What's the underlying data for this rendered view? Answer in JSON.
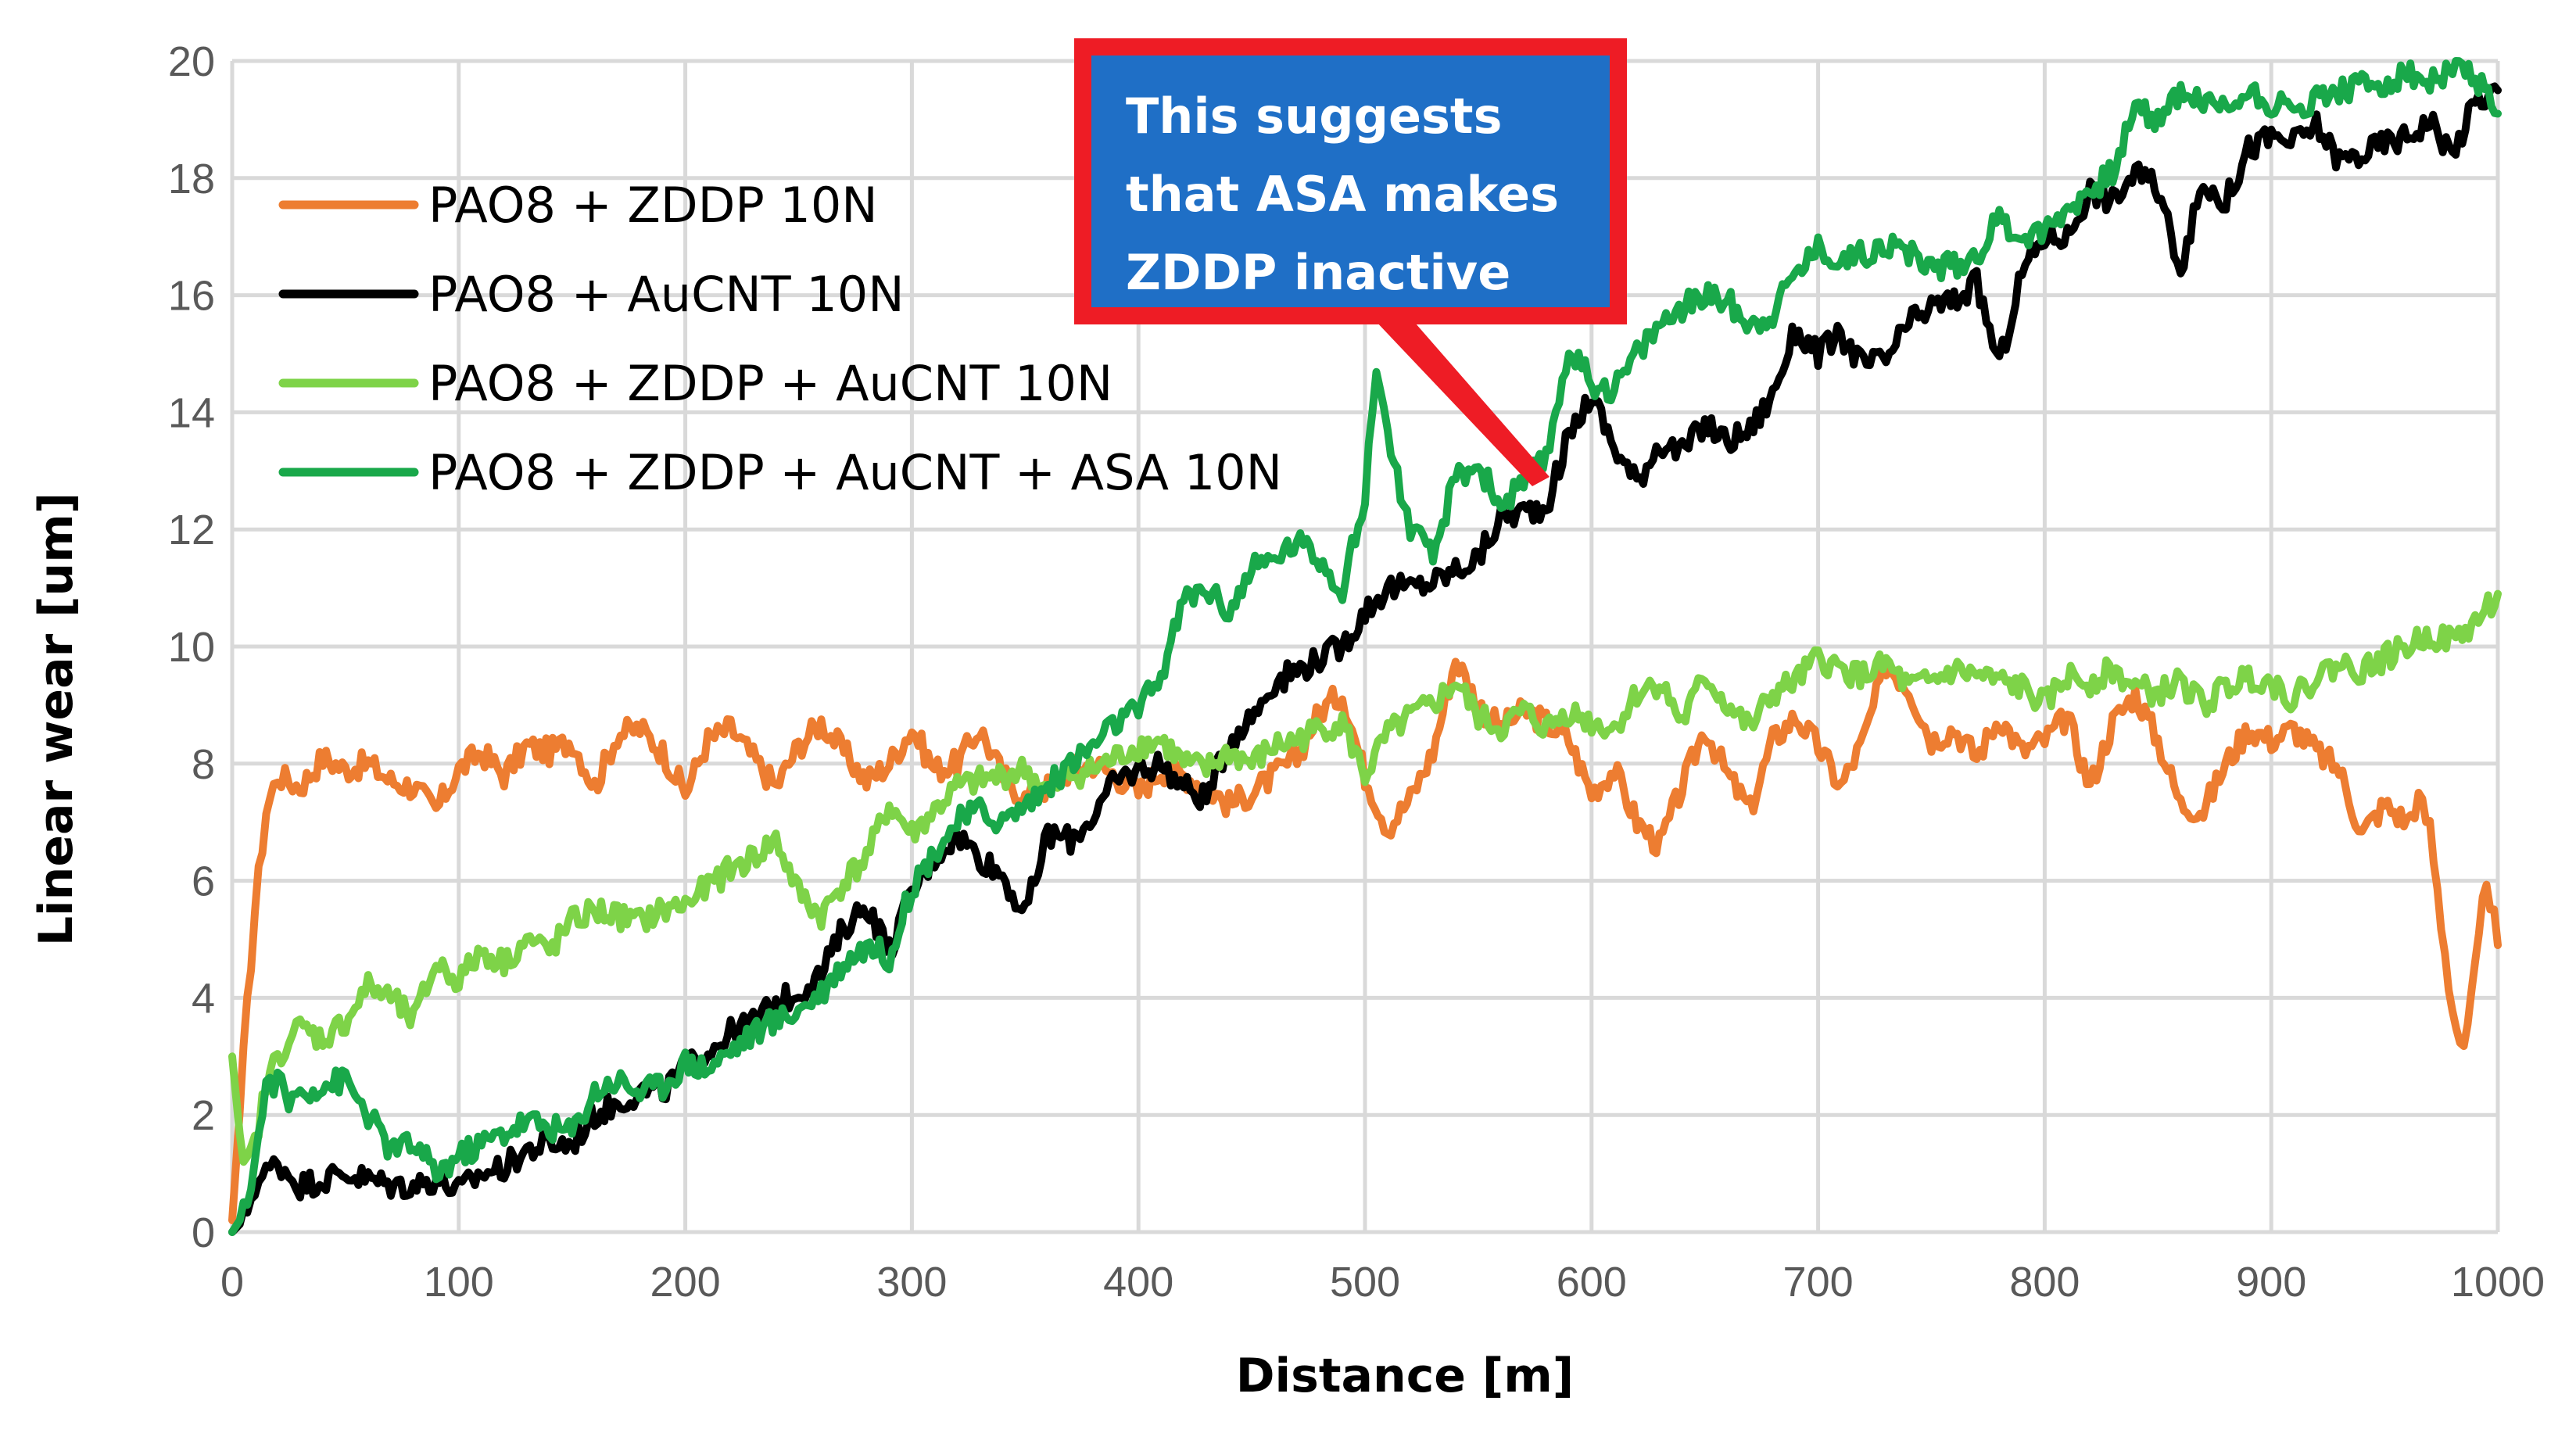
{
  "chart_data": {
    "type": "line",
    "title": "",
    "xlabel": "Distance [m]",
    "ylabel": "Linear wear [um]",
    "xlim": [
      0,
      1000
    ],
    "ylim": [
      0,
      20
    ],
    "xticks": [
      0,
      100,
      200,
      300,
      400,
      500,
      600,
      700,
      800,
      900,
      1000
    ],
    "yticks": [
      0,
      2,
      4,
      6,
      8,
      10,
      12,
      14,
      16,
      18,
      20
    ],
    "grid": true,
    "legend_position": "top-left",
    "series": [
      {
        "name": "PAO8 + ZDDP 10N",
        "color": "#ed7d31",
        "x": [
          0,
          5,
          10,
          15,
          20,
          25,
          30,
          40,
          50,
          60,
          70,
          80,
          90,
          100,
          110,
          120,
          130,
          140,
          150,
          160,
          170,
          180,
          190,
          200,
          210,
          220,
          230,
          240,
          250,
          260,
          270,
          280,
          290,
          300,
          310,
          320,
          330,
          340,
          350,
          360,
          370,
          380,
          390,
          400,
          410,
          420,
          430,
          440,
          450,
          460,
          470,
          480,
          490,
          500,
          510,
          520,
          530,
          540,
          550,
          560,
          570,
          580,
          590,
          600,
          610,
          620,
          630,
          640,
          650,
          660,
          670,
          680,
          690,
          700,
          710,
          720,
          730,
          740,
          750,
          760,
          770,
          780,
          790,
          800,
          810,
          820,
          830,
          840,
          850,
          860,
          870,
          880,
          890,
          900,
          910,
          920,
          930,
          940,
          950,
          960,
          965,
          970,
          975,
          980,
          985,
          990,
          995,
          1000
        ],
        "values": [
          0.2,
          3.0,
          5.5,
          7.2,
          7.8,
          7.7,
          7.6,
          8.1,
          7.9,
          8.0,
          7.7,
          7.6,
          7.2,
          7.9,
          8.2,
          7.8,
          8.3,
          8.2,
          8.4,
          7.6,
          8.5,
          8.6,
          8.2,
          7.5,
          8.4,
          8.6,
          8.1,
          7.6,
          8.3,
          8.7,
          8.2,
          7.7,
          8.0,
          8.6,
          7.9,
          8.0,
          8.6,
          7.8,
          7.4,
          7.6,
          7.9,
          8.0,
          7.8,
          7.5,
          7.9,
          7.8,
          7.6,
          7.3,
          7.5,
          7.8,
          8.1,
          8.9,
          9.2,
          7.8,
          6.9,
          7.4,
          8.2,
          9.8,
          9.0,
          8.6,
          8.9,
          8.7,
          8.4,
          7.5,
          7.9,
          7.0,
          6.6,
          7.6,
          8.6,
          7.8,
          7.2,
          8.4,
          8.8,
          8.3,
          7.6,
          8.4,
          9.7,
          9.3,
          8.4,
          8.6,
          8.1,
          8.8,
          8.2,
          8.4,
          8.8,
          7.6,
          8.7,
          9.2,
          8.4,
          7.3,
          7.2,
          8.0,
          8.6,
          8.4,
          8.6,
          8.2,
          7.9,
          6.8,
          7.3,
          7.0,
          7.4,
          6.9,
          5.3,
          3.8,
          3.0,
          4.4,
          6.1,
          4.9
        ]
      },
      {
        "name": "PAO8 + AuCNT 10N",
        "color": "#000000",
        "x": [
          0,
          5,
          10,
          15,
          20,
          25,
          30,
          40,
          50,
          60,
          70,
          80,
          90,
          100,
          110,
          120,
          130,
          140,
          150,
          160,
          170,
          180,
          190,
          200,
          210,
          220,
          230,
          240,
          250,
          260,
          270,
          280,
          290,
          300,
          310,
          320,
          330,
          340,
          350,
          360,
          370,
          380,
          390,
          400,
          410,
          420,
          430,
          440,
          450,
          460,
          470,
          480,
          490,
          500,
          510,
          520,
          530,
          540,
          550,
          560,
          570,
          580,
          590,
          600,
          610,
          620,
          630,
          640,
          650,
          660,
          670,
          680,
          690,
          700,
          710,
          720,
          730,
          740,
          750,
          760,
          770,
          780,
          790,
          800,
          810,
          820,
          830,
          840,
          850,
          860,
          870,
          880,
          890,
          900,
          910,
          920,
          930,
          940,
          950,
          960,
          970,
          980,
          990,
          1000
        ],
        "values": [
          0.0,
          0.2,
          0.8,
          1.0,
          1.2,
          1.0,
          0.8,
          0.9,
          1.0,
          0.9,
          0.8,
          0.8,
          0.9,
          0.7,
          1.0,
          1.1,
          1.4,
          1.5,
          1.5,
          2.0,
          2.2,
          2.4,
          2.4,
          2.8,
          3.1,
          3.4,
          3.6,
          3.9,
          4.1,
          4.4,
          5.2,
          5.6,
          4.8,
          5.8,
          6.4,
          6.8,
          6.4,
          6.1,
          5.4,
          6.8,
          6.7,
          7.1,
          7.7,
          7.9,
          8.0,
          7.6,
          7.4,
          8.4,
          8.8,
          9.4,
          9.6,
          9.8,
          10.0,
          10.6,
          11.0,
          11.0,
          11.1,
          11.3,
          11.5,
          12.2,
          12.3,
          12.4,
          13.6,
          14.3,
          13.4,
          12.8,
          13.5,
          13.3,
          13.8,
          13.5,
          13.7,
          14.3,
          15.4,
          15.0,
          15.3,
          14.8,
          14.9,
          15.5,
          15.8,
          15.9,
          16.2,
          14.8,
          16.4,
          17.0,
          17.0,
          17.8,
          17.6,
          18.1,
          17.8,
          16.5,
          17.9,
          17.6,
          18.5,
          18.7,
          18.6,
          18.9,
          18.3,
          18.4,
          18.6,
          18.7,
          19.0,
          18.4,
          19.3,
          19.5
        ]
      },
      {
        "name": "PAO8 + ZDDP + AuCNT 10N",
        "color": "#7ed348",
        "x": [
          0,
          5,
          10,
          15,
          20,
          25,
          30,
          40,
          50,
          60,
          70,
          80,
          90,
          100,
          110,
          120,
          130,
          140,
          150,
          160,
          170,
          180,
          190,
          200,
          210,
          220,
          230,
          240,
          250,
          260,
          270,
          280,
          290,
          300,
          310,
          320,
          330,
          340,
          350,
          360,
          370,
          380,
          390,
          400,
          410,
          420,
          430,
          440,
          450,
          460,
          470,
          480,
          490,
          500,
          510,
          520,
          530,
          540,
          550,
          560,
          570,
          580,
          590,
          600,
          610,
          620,
          630,
          640,
          650,
          660,
          670,
          680,
          690,
          700,
          710,
          720,
          730,
          740,
          750,
          760,
          770,
          780,
          790,
          800,
          810,
          820,
          830,
          840,
          850,
          860,
          870,
          880,
          890,
          900,
          910,
          920,
          930,
          940,
          950,
          960,
          970,
          980,
          990,
          1000
        ],
        "values": [
          3.0,
          1.0,
          1.5,
          2.5,
          3.0,
          3.3,
          3.5,
          3.3,
          3.6,
          4.2,
          4.0,
          3.6,
          4.6,
          4.3,
          4.8,
          4.6,
          5.0,
          4.8,
          5.3,
          5.5,
          5.4,
          5.3,
          5.5,
          5.6,
          5.9,
          6.2,
          6.4,
          6.7,
          5.8,
          5.4,
          6.0,
          6.4,
          7.3,
          6.8,
          7.2,
          7.6,
          7.7,
          7.8,
          7.9,
          7.5,
          7.8,
          7.9,
          8.1,
          8.3,
          8.4,
          8.0,
          7.9,
          8.2,
          8.0,
          8.3,
          8.4,
          8.6,
          8.7,
          7.8,
          8.5,
          8.8,
          9.0,
          9.4,
          8.8,
          8.6,
          8.9,
          8.6,
          8.9,
          8.7,
          8.6,
          9.2,
          9.4,
          8.7,
          9.5,
          9.0,
          8.6,
          9.2,
          9.4,
          9.8,
          9.6,
          9.5,
          9.7,
          9.3,
          9.4,
          9.6,
          9.5,
          9.4,
          9.3,
          9.0,
          9.5,
          9.4,
          9.6,
          9.3,
          9.2,
          9.4,
          9.0,
          9.3,
          9.5,
          9.4,
          9.1,
          9.5,
          9.7,
          9.6,
          9.8,
          10.0,
          10.2,
          10.1,
          10.4,
          10.9
        ]
      },
      {
        "name": "PAO8 + ZDDP + AuCNT + ASA 10N",
        "color": "#19a84a",
        "x": [
          0,
          5,
          10,
          15,
          20,
          25,
          30,
          40,
          50,
          60,
          70,
          80,
          90,
          100,
          110,
          120,
          130,
          140,
          150,
          160,
          170,
          180,
          190,
          200,
          210,
          220,
          230,
          240,
          250,
          260,
          270,
          280,
          290,
          300,
          310,
          320,
          330,
          340,
          350,
          360,
          370,
          380,
          390,
          400,
          410,
          420,
          430,
          440,
          450,
          460,
          470,
          480,
          490,
          500,
          505,
          510,
          520,
          530,
          540,
          550,
          560,
          570,
          580,
          590,
          600,
          610,
          620,
          630,
          640,
          650,
          660,
          670,
          680,
          690,
          700,
          710,
          720,
          730,
          740,
          750,
          760,
          770,
          780,
          790,
          800,
          810,
          820,
          830,
          840,
          850,
          860,
          870,
          880,
          890,
          900,
          910,
          920,
          930,
          940,
          950,
          960,
          970,
          980,
          990,
          1000
        ],
        "values": [
          0.0,
          0.3,
          1.2,
          2.5,
          2.6,
          2.2,
          2.4,
          2.5,
          2.6,
          2.0,
          1.4,
          1.5,
          1.0,
          1.3,
          1.5,
          1.7,
          1.9,
          1.8,
          1.7,
          2.4,
          2.6,
          2.4,
          2.5,
          2.9,
          2.8,
          3.1,
          3.4,
          3.6,
          3.8,
          4.1,
          4.6,
          4.9,
          4.7,
          5.9,
          6.5,
          7.0,
          7.2,
          7.0,
          7.3,
          7.6,
          8.0,
          8.3,
          8.7,
          8.9,
          9.5,
          10.8,
          11.0,
          10.6,
          11.3,
          11.5,
          11.8,
          11.5,
          11.0,
          12.5,
          14.9,
          13.6,
          12.0,
          11.5,
          12.9,
          13.1,
          12.4,
          12.8,
          13.2,
          15.1,
          14.5,
          14.4,
          15.0,
          15.5,
          15.8,
          16.0,
          15.9,
          15.5,
          15.7,
          16.4,
          16.8,
          16.6,
          16.7,
          16.9,
          16.7,
          16.5,
          16.5,
          16.7,
          17.3,
          17.0,
          17.1,
          17.5,
          17.8,
          18.1,
          19.2,
          19.0,
          19.5,
          19.3,
          19.2,
          19.5,
          19.3,
          19.1,
          19.4,
          19.5,
          19.6,
          19.6,
          19.8,
          19.6,
          19.9,
          19.7,
          19.1
        ]
      }
    ],
    "annotation": {
      "lines": [
        "This suggests",
        "that ASA makes",
        "ZDDP inactive"
      ],
      "box_fill": "#1f6fc6",
      "border_color": "#ee1c25",
      "text_color": "#ffffff",
      "points_to": [
        580,
        12.8
      ]
    }
  }
}
